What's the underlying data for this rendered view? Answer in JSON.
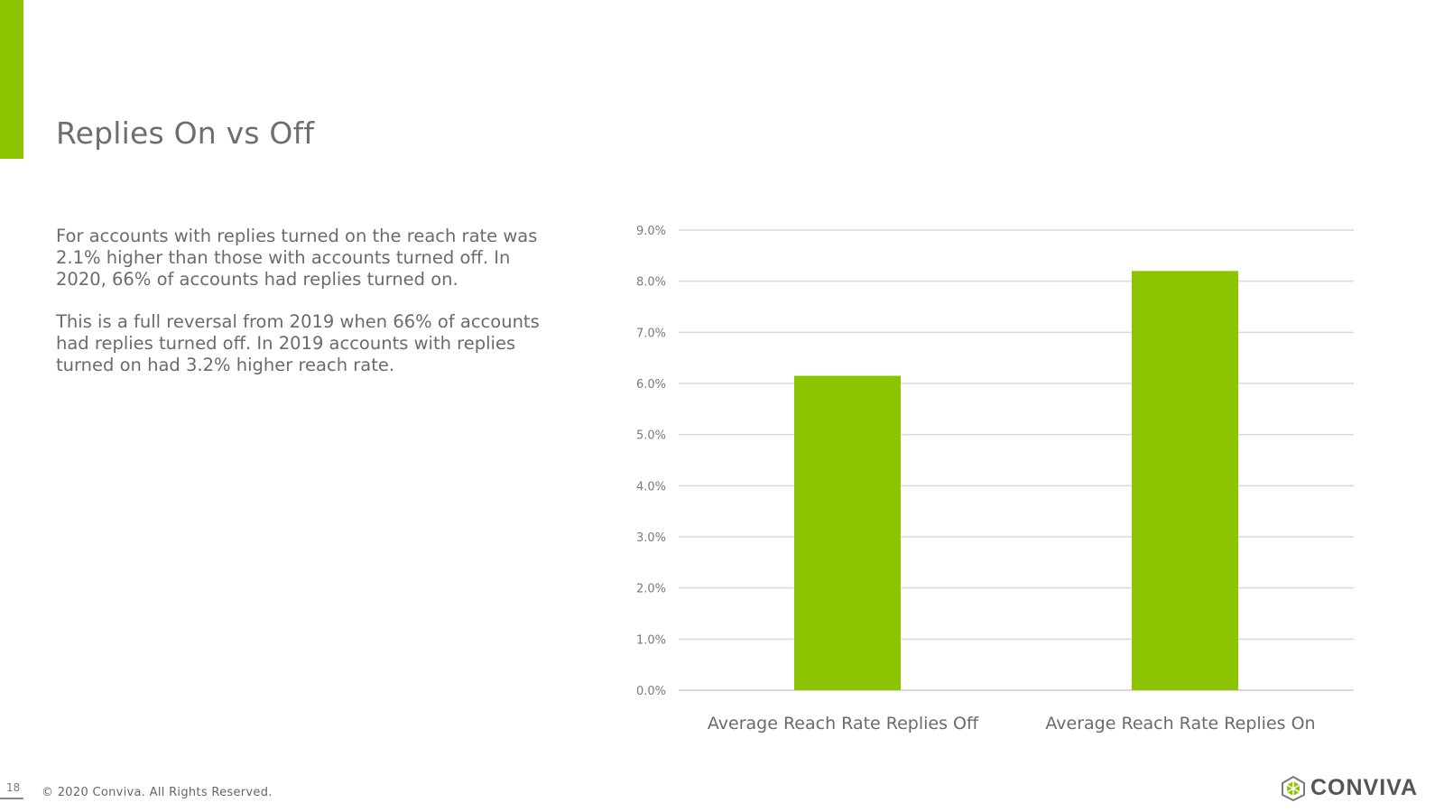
{
  "slide": {
    "title": "Replies On vs Off",
    "paragraphs": [
      "For accounts with replies turned on the reach rate was 2.1% higher than those with accounts turned off. In 2020, 66% of accounts had replies turned on.",
      "This is a full reversal from 2019 when 66% of accounts had replies turned off. In 2019 accounts with replies turned on had 3.2% higher reach rate."
    ],
    "page_number": "18",
    "copyright": "© 2020 Conviva. All Rights Reserved.",
    "logo_text": "CONVIVA",
    "logo_icon": "conviva-logo-icon"
  },
  "colors": {
    "accent": "#8dc400",
    "bar": "#8dc400",
    "gridline": "#d9d9d9",
    "text": "#6b6b6b"
  },
  "chart_data": {
    "type": "bar",
    "categories": [
      "Average Reach Rate Replies Off",
      "Average Reach Rate Replies On"
    ],
    "values": [
      6.15,
      8.2
    ],
    "ylim": [
      0,
      9
    ],
    "yticks": [
      "0.0%",
      "1.0%",
      "2.0%",
      "3.0%",
      "4.0%",
      "5.0%",
      "6.0%",
      "7.0%",
      "8.0%",
      "9.0%"
    ],
    "grid": true,
    "title": "",
    "xlabel": "",
    "ylabel": ""
  }
}
